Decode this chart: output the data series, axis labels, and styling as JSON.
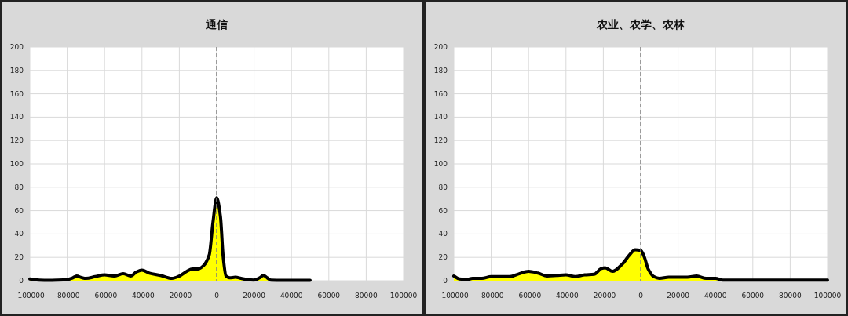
{
  "chart_data": [
    {
      "type": "area",
      "title": "通信",
      "xlim": [
        -100000,
        100000
      ],
      "xticks": [
        -100000,
        -80000,
        -60000,
        -40000,
        -20000,
        0,
        20000,
        40000,
        60000,
        80000,
        100000
      ],
      "ylim": [
        0,
        200
      ],
      "yticks": [
        0,
        20,
        40,
        60,
        80,
        100,
        120,
        140,
        160,
        180,
        200
      ],
      "grid": true,
      "x": [
        -100000,
        -95000,
        -90000,
        -85000,
        -80000,
        -77000,
        -75000,
        -72000,
        -70000,
        -65000,
        -60000,
        -55000,
        -50000,
        -46000,
        -43000,
        -40000,
        -36000,
        -30000,
        -26000,
        -24000,
        -20000,
        -16000,
        -13000,
        -10000,
        -7000,
        -4000,
        -2000,
        0,
        2000,
        3500,
        5000,
        7000,
        10000,
        13000,
        16000,
        20000,
        23000,
        25000,
        27000,
        29000,
        35000,
        50000
      ],
      "series": [
        {
          "color": "#ffff00",
          "values": [
            1.5,
            0.5,
            0.3,
            0.5,
            1,
            2.5,
            4,
            2.5,
            2,
            3.5,
            5,
            4,
            6,
            4,
            7.5,
            9,
            6.5,
            4.5,
            2.5,
            2,
            4,
            8,
            10,
            10,
            13,
            22,
            50,
            71,
            55,
            20,
            4,
            2.5,
            3,
            2,
            1,
            0.5,
            2.5,
            4.5,
            2.5,
            0.5,
            0.3,
            0.3
          ]
        }
      ],
      "ref_lines": [
        {
          "axis": "x",
          "value": 0,
          "color": "#808080",
          "line_style": "dashed"
        }
      ]
    },
    {
      "type": "area",
      "title": "农业、农学、农林",
      "xlim": [
        -100000,
        100000
      ],
      "xticks": [
        -100000,
        -80000,
        -60000,
        -40000,
        -20000,
        0,
        20000,
        40000,
        60000,
        80000,
        100000
      ],
      "ylim": [
        0,
        200
      ],
      "yticks": [
        0,
        20,
        40,
        60,
        80,
        100,
        120,
        140,
        160,
        180,
        200
      ],
      "grid": true,
      "x": [
        -100000,
        -97000,
        -93000,
        -90000,
        -85000,
        -80000,
        -75000,
        -70000,
        -65000,
        -60000,
        -55000,
        -50000,
        -45000,
        -40000,
        -35000,
        -30000,
        -25000,
        -21000,
        -19000,
        -15000,
        -10000,
        -6000,
        -3000,
        0,
        2000,
        4000,
        7000,
        10000,
        15000,
        20000,
        25000,
        30000,
        35000,
        40000,
        44000,
        50000,
        100000
      ],
      "series": [
        {
          "color": "#ffff00",
          "values": [
            4,
            1.5,
            1,
            2,
            2,
            3.5,
            3.5,
            3.5,
            6,
            8,
            6.5,
            4,
            4.5,
            5,
            3.5,
            5,
            5.5,
            10.5,
            11,
            8,
            14,
            22,
            26.5,
            26,
            20,
            10,
            3.5,
            2,
            3,
            3,
            3,
            4,
            2,
            2,
            0.5,
            0.5,
            0.5
          ]
        }
      ],
      "ref_lines": [
        {
          "axis": "x",
          "value": 0,
          "color": "#808080",
          "line_style": "dashed"
        }
      ]
    }
  ]
}
